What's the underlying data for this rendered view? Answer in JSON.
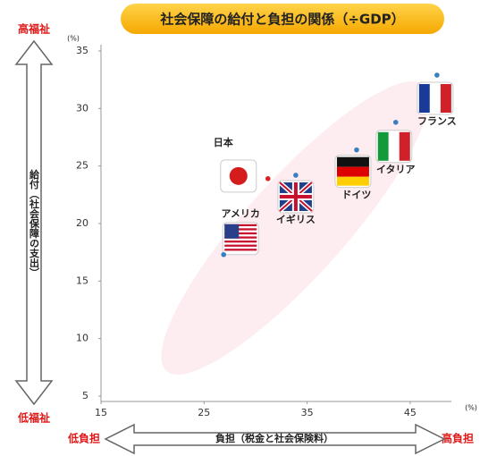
{
  "chart_data": {
    "type": "scatter",
    "title": "社会保障の給付と負担の関係（÷GDP）",
    "xlabel": "負担（税金と社会保険料）",
    "ylabel": "給付（社会保障の支出）",
    "x_unit": "(%)",
    "y_unit": "(%)",
    "annotations": {
      "high_welfare": "高福祉",
      "low_welfare": "低福祉",
      "low_burden": "低負担",
      "high_burden": "高負担"
    },
    "xlim": [
      15,
      49
    ],
    "xticks": [
      15,
      25,
      35,
      45
    ],
    "ylim": [
      5,
      35
    ],
    "yticks": [
      5,
      10,
      15,
      20,
      25,
      30,
      35
    ],
    "points": [
      {
        "label": "日本",
        "x": 31.2,
        "y": 23.9,
        "color": "#e02020"
      },
      {
        "label": "イギリス",
        "x": 33.9,
        "y": 24.2,
        "color": "#3a7fc1"
      },
      {
        "label": "アメリカ",
        "x": 26.9,
        "y": 17.3,
        "color": "#3a7fc1"
      },
      {
        "label": "ドイツ",
        "x": 39.8,
        "y": 26.4,
        "color": "#3a7fc1"
      },
      {
        "label": "イタリア",
        "x": 43.6,
        "y": 28.8,
        "color": "#3a7fc1"
      },
      {
        "label": "フランス",
        "x": 47.6,
        "y": 32.9,
        "color": "#3a7fc1"
      }
    ]
  }
}
